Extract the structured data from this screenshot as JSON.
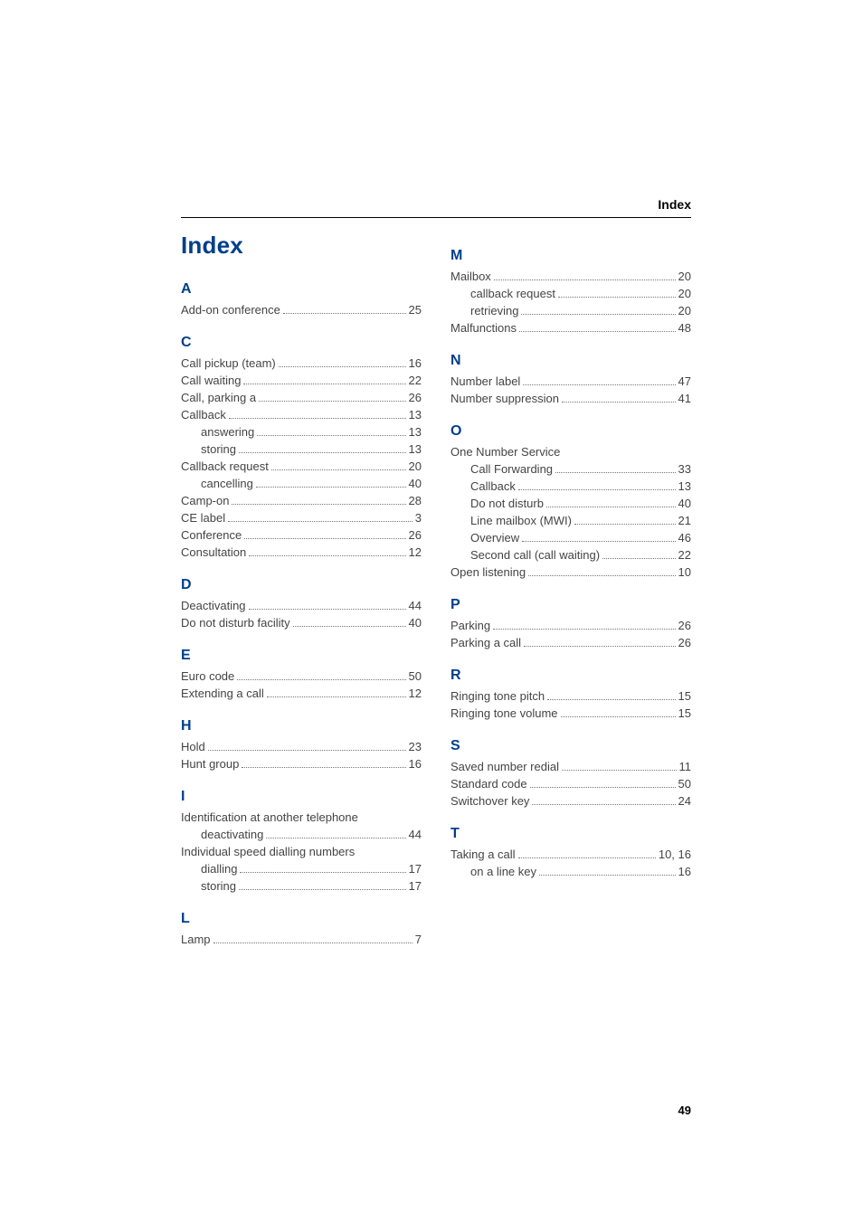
{
  "running_head": "Index",
  "title": "Index",
  "page_number": "49",
  "left": {
    "sections": [
      {
        "letter": "A",
        "entries": [
          {
            "label": "Add-on conference",
            "page": "25",
            "sub": false
          }
        ]
      },
      {
        "letter": "C",
        "entries": [
          {
            "label": "Call pickup (team)",
            "page": "16",
            "sub": false
          },
          {
            "label": "Call waiting",
            "page": "22",
            "sub": false
          },
          {
            "label": "Call, parking a",
            "page": "26",
            "sub": false
          },
          {
            "label": "Callback",
            "page": "13",
            "sub": false
          },
          {
            "label": "answering",
            "page": "13",
            "sub": true
          },
          {
            "label": "storing",
            "page": "13",
            "sub": true
          },
          {
            "label": "Callback request",
            "page": "20",
            "sub": false
          },
          {
            "label": "cancelling",
            "page": "40",
            "sub": true
          },
          {
            "label": "Camp-on",
            "page": "28",
            "sub": false
          },
          {
            "label": "CE label",
            "page": "3",
            "sub": false
          },
          {
            "label": "Conference",
            "page": "26",
            "sub": false
          },
          {
            "label": "Consultation",
            "page": "12",
            "sub": false
          }
        ]
      },
      {
        "letter": "D",
        "entries": [
          {
            "label": "Deactivating",
            "page": "44",
            "sub": false
          },
          {
            "label": "Do not disturb facility",
            "page": "40",
            "sub": false
          }
        ]
      },
      {
        "letter": "E",
        "entries": [
          {
            "label": "Euro code",
            "page": "50",
            "sub": false
          },
          {
            "label": "Extending a call",
            "page": "12",
            "sub": false
          }
        ]
      },
      {
        "letter": "H",
        "entries": [
          {
            "label": "Hold",
            "page": "23",
            "sub": false
          },
          {
            "label": "Hunt group",
            "page": "16",
            "sub": false
          }
        ]
      },
      {
        "letter": "I",
        "entries": [
          {
            "label": "Identification at another telephone",
            "page": "",
            "sub": false,
            "noline": true
          },
          {
            "label": "deactivating",
            "page": "44",
            "sub": true
          },
          {
            "label": "Individual speed dialling numbers",
            "page": "",
            "sub": false,
            "noline": true
          },
          {
            "label": "dialling",
            "page": "17",
            "sub": true
          },
          {
            "label": "storing",
            "page": "17",
            "sub": true
          }
        ]
      },
      {
        "letter": "L",
        "entries": [
          {
            "label": "Lamp",
            "page": "7",
            "sub": false
          }
        ]
      }
    ]
  },
  "right": {
    "sections": [
      {
        "letter": "M",
        "entries": [
          {
            "label": "Mailbox",
            "page": "20",
            "sub": false
          },
          {
            "label": "callback request",
            "page": "20",
            "sub": true
          },
          {
            "label": "retrieving",
            "page": "20",
            "sub": true
          },
          {
            "label": "Malfunctions",
            "page": "48",
            "sub": false
          }
        ]
      },
      {
        "letter": "N",
        "entries": [
          {
            "label": "Number label",
            "page": "47",
            "sub": false
          },
          {
            "label": "Number suppression",
            "page": "41",
            "sub": false
          }
        ]
      },
      {
        "letter": "O",
        "entries": [
          {
            "label": "One Number Service",
            "page": "",
            "sub": false,
            "noline": true
          },
          {
            "label": "Call Forwarding",
            "page": "33",
            "sub": true
          },
          {
            "label": "Callback",
            "page": "13",
            "sub": true
          },
          {
            "label": "Do not disturb",
            "page": "40",
            "sub": true
          },
          {
            "label": "Line mailbox (MWI)",
            "page": "21",
            "sub": true
          },
          {
            "label": "Overview",
            "page": "46",
            "sub": true
          },
          {
            "label": "Second call (call waiting)",
            "page": "22",
            "sub": true
          },
          {
            "label": "Open listening",
            "page": "10",
            "sub": false
          }
        ]
      },
      {
        "letter": "P",
        "entries": [
          {
            "label": "Parking",
            "page": "26",
            "sub": false
          },
          {
            "label": "Parking a call",
            "page": "26",
            "sub": false
          }
        ]
      },
      {
        "letter": "R",
        "entries": [
          {
            "label": "Ringing tone pitch",
            "page": "15",
            "sub": false
          },
          {
            "label": "Ringing tone volume",
            "page": "15",
            "sub": false
          }
        ]
      },
      {
        "letter": "S",
        "entries": [
          {
            "label": "Saved number redial",
            "page": "11",
            "sub": false
          },
          {
            "label": "Standard code",
            "page": "50",
            "sub": false
          },
          {
            "label": "Switchover key",
            "page": "24",
            "sub": false
          }
        ]
      },
      {
        "letter": "T",
        "entries": [
          {
            "label": "Taking a call",
            "page": "10, 16",
            "sub": false
          },
          {
            "label": "on a line key",
            "page": "16",
            "sub": true
          }
        ]
      }
    ]
  }
}
